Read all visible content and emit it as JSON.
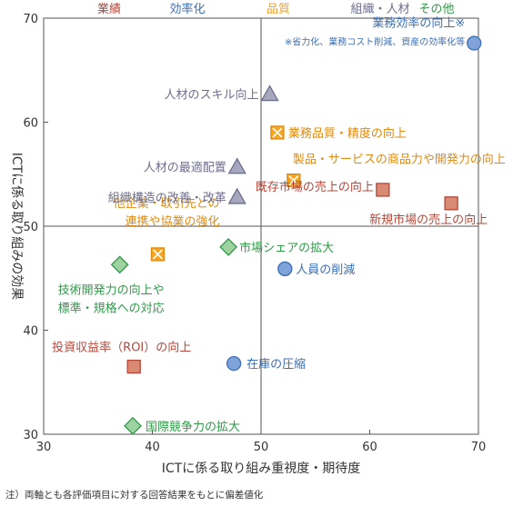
{
  "chart_data": {
    "type": "scatter",
    "xlabel": "ICTに係る取り組み重視度・期待度",
    "ylabel": "ICTに係る取り組みの効果",
    "xlim": [
      30,
      70
    ],
    "ylim": [
      30,
      70
    ],
    "xticks": [
      30,
      40,
      50,
      60,
      70
    ],
    "yticks": [
      30,
      40,
      50,
      60,
      70
    ],
    "grid": false,
    "crosshair": {
      "x": 50,
      "y": 50
    },
    "legend": [
      {
        "name": "業績",
        "color": "#b5473a"
      },
      {
        "name": "効率化",
        "color": "#3c6fb6"
      },
      {
        "name": "品質",
        "color": "#f0a030"
      },
      {
        "name": "組織・人材",
        "color": "#6e6e8c"
      },
      {
        "name": "その他",
        "color": "#2e9a48"
      }
    ],
    "series": [
      {
        "name": "業績",
        "marker": "square",
        "color": "#b5473a",
        "fill": "#d98a72",
        "points": [
          {
            "x": 61.2,
            "y": 53.5,
            "label": "既存市場の売上の向上"
          },
          {
            "x": 67.5,
            "y": 52.2,
            "label": "新規市場の売上の向上"
          },
          {
            "x": 38.3,
            "y": 36.5,
            "label": "投資収益率（ROI）の向上"
          }
        ]
      },
      {
        "name": "効率化",
        "marker": "circle",
        "color": "#3c6fb6",
        "fill": "#7fa2d8",
        "points": [
          {
            "x": 69.6,
            "y": 67.6,
            "label": "業務効率の向上※",
            "sublabel": "※省力化、業務コスト削減、資産の効率化等"
          },
          {
            "x": 52.2,
            "y": 45.9,
            "label": "人員の削減"
          },
          {
            "x": 47.5,
            "y": 36.8,
            "label": "在庫の圧縮"
          }
        ]
      },
      {
        "name": "品質",
        "marker": "square-x",
        "color": "#e08a10",
        "fill": "#f5a623",
        "points": [
          {
            "x": 51.5,
            "y": 59.0,
            "label": "業務品質・精度の向上"
          },
          {
            "x": 53.0,
            "y": 54.4,
            "label": "製品・サービスの商品力や開発力の向上"
          },
          {
            "x": 40.5,
            "y": 47.3,
            "label": "他企業・取引先との連携や協業の強化"
          }
        ]
      },
      {
        "name": "組織・人材",
        "marker": "triangle",
        "color": "#6e6e8c",
        "fill": "#a7a7c0",
        "points": [
          {
            "x": 50.8,
            "y": 62.7,
            "label": "人材のスキル向上"
          },
          {
            "x": 47.8,
            "y": 55.7,
            "label": "人材の最適配置"
          },
          {
            "x": 47.8,
            "y": 52.8,
            "label": "組織構造の改善・改革"
          }
        ]
      },
      {
        "name": "その他",
        "marker": "diamond",
        "color": "#2e9a48",
        "fill": "#9ed29f",
        "points": [
          {
            "x": 47.0,
            "y": 48.0,
            "label": "市場シェアの拡大"
          },
          {
            "x": 37.0,
            "y": 46.3,
            "label": "技術開発力の向上や標準・規格への対応"
          },
          {
            "x": 38.2,
            "y": 30.8,
            "label": "国際競争力の拡大"
          }
        ]
      }
    ]
  },
  "note": "注）両軸とも各評価項目に対する回答結果をもとに偏差値化"
}
